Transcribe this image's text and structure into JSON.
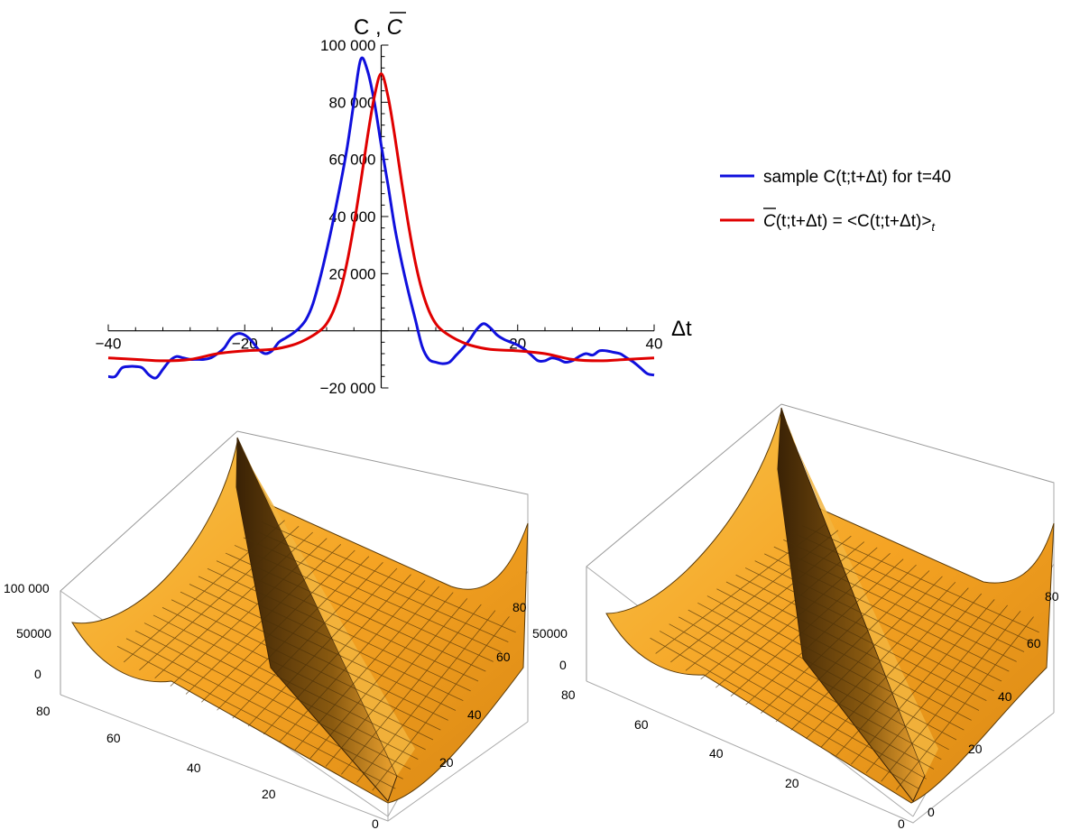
{
  "chart_data": [
    {
      "type": "line",
      "title": "",
      "xlabel": "Δt",
      "ylabel": "C , C̅",
      "ylabel_parts": {
        "plain": "C ,",
        "overlined": "C"
      },
      "xlim": [
        -40,
        40
      ],
      "ylim": [
        -20000,
        100000
      ],
      "xticks": [
        -40,
        -20,
        20,
        40
      ],
      "xtick_labels": [
        "−40",
        "−20",
        "20",
        "40"
      ],
      "yticks": [
        -20000,
        20000,
        40000,
        60000,
        80000,
        100000
      ],
      "ytick_labels": [
        "−20 000",
        "20 000",
        "40 000",
        "60 000",
        "80 000",
        "100 000"
      ],
      "legend_position": "right",
      "grid": false,
      "series": [
        {
          "name": "sample C(t;t+Δt) for t=40",
          "legend": {
            "pre": "sample C(t;t+Δt) for t=40"
          },
          "color": "#1010dd",
          "x": [
            -40,
            -39,
            -38,
            -37,
            -36,
            -35,
            -34,
            -33,
            -32,
            -31,
            -30,
            -29,
            -28,
            -27,
            -26,
            -25,
            -24,
            -23,
            -22,
            -21,
            -20,
            -19,
            -18,
            -17,
            -16,
            -15,
            -14,
            -13,
            -12,
            -11,
            -10,
            -9,
            -8,
            -7,
            -6,
            -5,
            -4,
            -3,
            -2,
            -1,
            0,
            1,
            2,
            3,
            4,
            5,
            6,
            7,
            8,
            9,
            10,
            11,
            12,
            13,
            14,
            15,
            16,
            17,
            18,
            19,
            20,
            21,
            22,
            23,
            24,
            25,
            26,
            27,
            28,
            29,
            30,
            31,
            32,
            33,
            34,
            35,
            36,
            37,
            38,
            39,
            40
          ],
          "values": [
            -16000,
            -16000,
            -13000,
            -12500,
            -12500,
            -13000,
            -15500,
            -16500,
            -13500,
            -10500,
            -9000,
            -9500,
            -10000,
            -10000,
            -10000,
            -9500,
            -8000,
            -6000,
            -2500,
            -1000,
            -1500,
            -3500,
            -6500,
            -8000,
            -7000,
            -4000,
            -2500,
            -1000,
            1000,
            4000,
            9500,
            18000,
            28000,
            39000,
            51000,
            64000,
            80000,
            95000,
            91000,
            80000,
            65000,
            51000,
            36000,
            24000,
            13500,
            4000,
            -5500,
            -10000,
            -11000,
            -11500,
            -11000,
            -8500,
            -6000,
            -3000,
            500,
            2500,
            1000,
            -1500,
            -3000,
            -4000,
            -5000,
            -6500,
            -8500,
            -10500,
            -10500,
            -9500,
            -10000,
            -11000,
            -10500,
            -9000,
            -8000,
            -8500,
            -7000,
            -7000,
            -7500,
            -8000,
            -9500,
            -11000,
            -13000,
            -15000,
            -15500
          ],
          "x_note": "values sampled at Δt steps aligned to x array"
        },
        {
          "name": "C̅(t;t+Δt) = <C(t;t+Δt)>t",
          "legend": {
            "overlined": "C",
            "pre": "(t;t+Δt) = <C(t;t+Δt)>",
            "sub": "t"
          },
          "color": "#e00000",
          "x": [
            -40,
            -36,
            -32,
            -28,
            -24,
            -20,
            -16,
            -13,
            -11,
            -9,
            -8,
            -7,
            -6,
            -5,
            -4,
            -3,
            -2,
            -1,
            0,
            1,
            2,
            3,
            4,
            5,
            6,
            7,
            8,
            9,
            11,
            13,
            16,
            20,
            24,
            28,
            32,
            36,
            40
          ],
          "values": [
            -9500,
            -10000,
            -10500,
            -10000,
            -8000,
            -7000,
            -6500,
            -5000,
            -3000,
            0,
            2500,
            7000,
            14000,
            24000,
            37000,
            52000,
            68000,
            82000,
            90000,
            82000,
            68000,
            52000,
            37000,
            24000,
            14000,
            7000,
            2500,
            0,
            -3000,
            -5000,
            -6500,
            -7000,
            -8000,
            -10000,
            -10500,
            -10000,
            -9500
          ]
        }
      ]
    },
    {
      "type": "surface",
      "title": "",
      "zticks": [
        "0",
        "50000",
        "100 000"
      ],
      "xticks": [
        "80",
        "60",
        "40",
        "20",
        "0"
      ],
      "yticks": [
        "20",
        "40",
        "60",
        "80"
      ],
      "color": "#f5a623",
      "description_values": {
        "ridge": "diagonal ridge along t1=t2",
        "zmax": 100000
      }
    },
    {
      "type": "surface",
      "title": "",
      "zticks": [
        "0",
        "50000"
      ],
      "xticks": [
        "80",
        "60",
        "40",
        "20",
        "0"
      ],
      "yticks": [
        "0",
        "20",
        "40",
        "60",
        "80"
      ],
      "color": "#f5a623",
      "description_values": {
        "ridge": "diagonal ridge along t1=t2"
      }
    }
  ]
}
